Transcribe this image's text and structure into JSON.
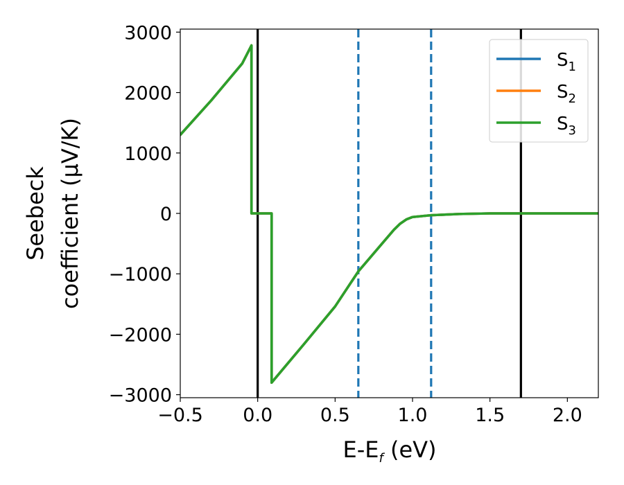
{
  "chart_data": {
    "type": "line",
    "xlabel": "E-E",
    "xlabel_sub": "f",
    "xlabel_unit": " (eV)",
    "ylabel_line1": "Seebeck",
    "ylabel_line2": "coefficient  (μV/K)",
    "xlim": [
      -0.5,
      2.2
    ],
    "ylim": [
      -3050,
      3050
    ],
    "xticks": [
      -0.5,
      0.0,
      0.5,
      1.0,
      1.5,
      2.0
    ],
    "xtick_labels": [
      "−0.5",
      "0.0",
      "0.5",
      "1.0",
      "1.5",
      "2.0"
    ],
    "yticks": [
      -3000,
      -2000,
      -1000,
      0,
      1000,
      2000,
      3000
    ],
    "ytick_labels": [
      "−3000",
      "−2000",
      "−1000",
      "0",
      "1000",
      "2000",
      "3000"
    ],
    "grid": false,
    "legend_position": "top-right",
    "vlines_solid": [
      0.0,
      1.7
    ],
    "vlines_dashed": [
      0.65,
      1.12
    ],
    "vline_solid_color": "#000000",
    "vline_dashed_color": "#1f77b4",
    "x": [
      -0.5,
      -0.3,
      -0.1,
      -0.04,
      -0.04,
      0.0,
      0.09,
      0.09,
      0.3,
      0.5,
      0.65,
      0.8,
      0.88,
      0.92,
      0.96,
      1.0,
      1.12,
      1.3,
      1.5,
      1.7,
      2.0,
      2.2
    ],
    "series": [
      {
        "name": "S",
        "sub": "1",
        "color": "#1f77b4",
        "y": [
          1300,
          1870,
          2480,
          2780,
          0,
          0,
          0,
          -2800,
          -2160,
          -1540,
          -960,
          -510,
          -270,
          -170,
          -100,
          -60,
          -30,
          -10,
          0,
          0,
          0,
          0
        ]
      },
      {
        "name": "S",
        "sub": "2",
        "color": "#ff7f0e",
        "y": [
          1300,
          1870,
          2480,
          2780,
          0,
          0,
          0,
          -2800,
          -2160,
          -1540,
          -960,
          -510,
          -270,
          -170,
          -100,
          -60,
          -30,
          -10,
          0,
          0,
          0,
          0
        ]
      },
      {
        "name": "S",
        "sub": "3",
        "color": "#2ca02c",
        "y": [
          1300,
          1870,
          2480,
          2780,
          0,
          0,
          0,
          -2800,
          -2160,
          -1540,
          -960,
          -510,
          -270,
          -170,
          -100,
          -60,
          -30,
          -10,
          0,
          0,
          0,
          0
        ]
      }
    ]
  }
}
